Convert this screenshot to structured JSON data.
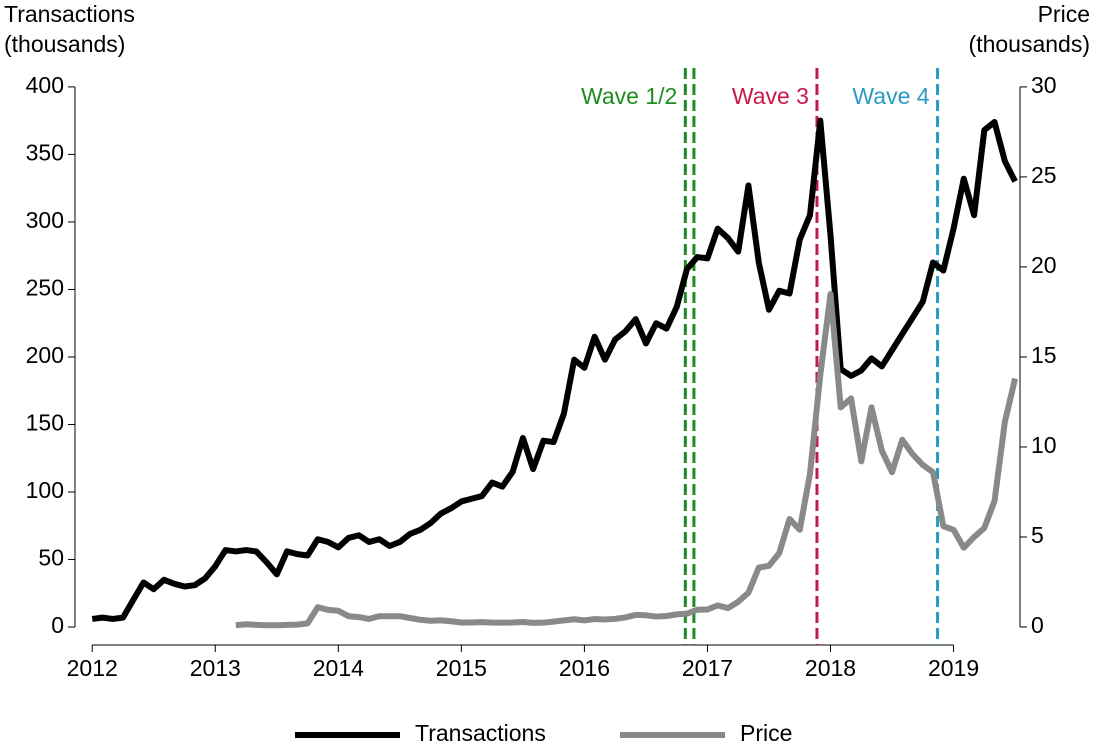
{
  "chart_data": {
    "type": "line",
    "ylabel": [
      "Transactions",
      "(thousands)"
    ],
    "y2label": [
      "Price",
      "(thousands)"
    ],
    "xlim": [
      2011.86,
      2019.54
    ],
    "xticks": [
      2012,
      2013,
      2014,
      2015,
      2016,
      2017,
      2018,
      2019
    ],
    "ylim": [
      -13.3,
      414
    ],
    "yticks": [
      0,
      50,
      100,
      150,
      200,
      250,
      300,
      350,
      400
    ],
    "y2lim": [
      -1,
      31.05
    ],
    "y2ticks": [
      0,
      5,
      10,
      15,
      20,
      25,
      30
    ],
    "legend": "bottom",
    "series": [
      {
        "name": "Transactions",
        "color": "#000000",
        "x": [
          2012,
          2012.083,
          2012.167,
          2012.25,
          2012.333,
          2012.417,
          2012.5,
          2012.583,
          2012.667,
          2012.75,
          2012.833,
          2012.917,
          2013,
          2013.083,
          2013.167,
          2013.25,
          2013.333,
          2013.417,
          2013.5,
          2013.583,
          2013.667,
          2013.75,
          2013.833,
          2013.917,
          2014,
          2014.083,
          2014.167,
          2014.25,
          2014.333,
          2014.417,
          2014.5,
          2014.583,
          2014.667,
          2014.75,
          2014.833,
          2014.917,
          2015,
          2015.083,
          2015.167,
          2015.25,
          2015.333,
          2015.417,
          2015.5,
          2015.583,
          2015.667,
          2015.75,
          2015.833,
          2015.917,
          2016,
          2016.083,
          2016.167,
          2016.25,
          2016.333,
          2016.417,
          2016.5,
          2016.583,
          2016.667,
          2016.75,
          2016.833,
          2016.917,
          2017,
          2017.083,
          2017.167,
          2017.25,
          2017.333,
          2017.417,
          2017.5,
          2017.583,
          2017.667,
          2017.75,
          2017.833,
          2017.917,
          2018,
          2018.083,
          2018.167,
          2018.25,
          2018.333,
          2018.417,
          2018.5,
          2018.583,
          2018.667,
          2018.75,
          2018.833,
          2018.917,
          2019,
          2019.083,
          2019.167,
          2019.25,
          2019.333,
          2019.417,
          2019.5
        ],
        "values": [
          6,
          7,
          6,
          7,
          20,
          33,
          28,
          35,
          32,
          30,
          31,
          36,
          45,
          57,
          56,
          57,
          56,
          48,
          39,
          56,
          54,
          53,
          65,
          63,
          59,
          66,
          68,
          63,
          65,
          60,
          63,
          69,
          72,
          77,
          84,
          88,
          93,
          95,
          97,
          107,
          104,
          115,
          140,
          117,
          138,
          137,
          158,
          198,
          192,
          215,
          198,
          213,
          219,
          228,
          210,
          225,
          221,
          237,
          265,
          274,
          273,
          295,
          288,
          278,
          327,
          270,
          235,
          249,
          247,
          287,
          305,
          375,
          290,
          191,
          186,
          190,
          199,
          193,
          205,
          217,
          229,
          241,
          270,
          264,
          295,
          332,
          305,
          368,
          374,
          345,
          330
        ]
      },
      {
        "name": "Price",
        "color": "#898989",
        "axis": "y2",
        "x": [
          2013.167,
          2013.25,
          2013.333,
          2013.417,
          2013.5,
          2013.583,
          2013.667,
          2013.75,
          2013.833,
          2013.917,
          2014,
          2014.083,
          2014.167,
          2014.25,
          2014.333,
          2014.417,
          2014.5,
          2014.583,
          2014.667,
          2014.75,
          2014.833,
          2014.917,
          2015,
          2015.083,
          2015.167,
          2015.25,
          2015.333,
          2015.417,
          2015.5,
          2015.583,
          2015.667,
          2015.75,
          2015.833,
          2015.917,
          2016,
          2016.083,
          2016.167,
          2016.25,
          2016.333,
          2016.417,
          2016.5,
          2016.583,
          2016.667,
          2016.75,
          2016.833,
          2016.917,
          2017,
          2017.083,
          2017.167,
          2017.25,
          2017.333,
          2017.417,
          2017.5,
          2017.583,
          2017.667,
          2017.75,
          2017.833,
          2017.917,
          2018,
          2018.083,
          2018.167,
          2018.25,
          2018.333,
          2018.417,
          2018.5,
          2018.583,
          2018.667,
          2018.75,
          2018.833,
          2018.917,
          2019,
          2019.083,
          2019.167,
          2019.25,
          2019.333,
          2019.417,
          2019.5
        ],
        "values": [
          0.1,
          0.15,
          0.12,
          0.1,
          0.1,
          0.12,
          0.13,
          0.2,
          1.1,
          0.95,
          0.9,
          0.6,
          0.55,
          0.45,
          0.6,
          0.6,
          0.6,
          0.5,
          0.4,
          0.35,
          0.37,
          0.32,
          0.25,
          0.25,
          0.27,
          0.24,
          0.24,
          0.25,
          0.28,
          0.23,
          0.24,
          0.3,
          0.37,
          0.43,
          0.37,
          0.44,
          0.42,
          0.45,
          0.53,
          0.67,
          0.65,
          0.58,
          0.61,
          0.7,
          0.74,
          0.96,
          0.97,
          1.2,
          1.05,
          1.4,
          1.9,
          3.3,
          3.4,
          4.1,
          6.0,
          5.4,
          8.5,
          14,
          18.5,
          12.2,
          12.7,
          9.2,
          12.2,
          9.8,
          8.6,
          10.4,
          9.6,
          9.0,
          8.6,
          5.6,
          5.4,
          4.4,
          5.0,
          5.5,
          7.0,
          11.4,
          13.8
        ]
      }
    ],
    "annotations": [
      {
        "text": "Wave 1/2",
        "x": [
          2016.82,
          2016.89
        ],
        "color": "#1e8c1e"
      },
      {
        "text": "Wave 3",
        "x": [
          2017.89
        ],
        "color": "#c8194b"
      },
      {
        "text": "Wave 4",
        "x": [
          2018.87
        ],
        "color": "#2a9ac4"
      }
    ]
  }
}
